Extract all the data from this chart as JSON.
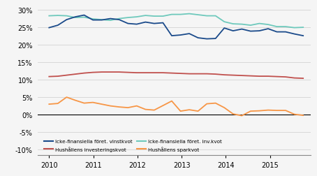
{
  "xlim": [
    2009.75,
    2015.92
  ],
  "ylim": [
    -0.115,
    0.315
  ],
  "yticks": [
    -0.1,
    -0.05,
    0.0,
    0.05,
    0.1,
    0.15,
    0.2,
    0.25,
    0.3
  ],
  "xtick_years": [
    2010,
    2011,
    2012,
    2013,
    2014,
    2015
  ],
  "colors": {
    "vinstkvot": "#1a4a8a",
    "inv_kvot_foret": "#6ec9bc",
    "hush_inv_kvot": "#c0504d",
    "hush_spark": "#f79646"
  },
  "legend": [
    {
      "label": "Icke-finansiella föret. vinstkvot",
      "color": "#1a4a8a"
    },
    {
      "label": "Hushållens investeringskvot",
      "color": "#c0504d"
    },
    {
      "label": "Icke-finansiella föret. inv.kvot",
      "color": "#6ec9bc"
    },
    {
      "label": "Hushållens sparkvot",
      "color": "#f79646"
    }
  ],
  "series": {
    "vinstkvot": [
      0.249,
      0.256,
      0.272,
      0.28,
      0.285,
      0.271,
      0.271,
      0.275,
      0.272,
      0.261,
      0.259,
      0.265,
      0.261,
      0.263,
      0.226,
      0.228,
      0.232,
      0.22,
      0.217,
      0.218,
      0.248,
      0.24,
      0.245,
      0.239,
      0.24,
      0.246,
      0.237,
      0.237,
      0.231,
      0.226
    ],
    "inv_kvot_foret": [
      0.283,
      0.284,
      0.283,
      0.278,
      0.279,
      0.274,
      0.272,
      0.27,
      0.275,
      0.278,
      0.28,
      0.284,
      0.282,
      0.282,
      0.287,
      0.287,
      0.289,
      0.286,
      0.283,
      0.283,
      0.266,
      0.26,
      0.259,
      0.256,
      0.261,
      0.258,
      0.252,
      0.252,
      0.249,
      0.25
    ],
    "hush_inv_kvot": [
      0.109,
      0.11,
      0.113,
      0.116,
      0.119,
      0.121,
      0.122,
      0.122,
      0.122,
      0.121,
      0.12,
      0.12,
      0.12,
      0.12,
      0.119,
      0.118,
      0.117,
      0.117,
      0.117,
      0.116,
      0.114,
      0.113,
      0.112,
      0.111,
      0.11,
      0.11,
      0.109,
      0.108,
      0.105,
      0.104
    ],
    "hush_spark": [
      0.03,
      0.032,
      0.05,
      0.041,
      0.033,
      0.035,
      0.03,
      0.025,
      0.022,
      0.02,
      0.025,
      0.015,
      0.013,
      0.026,
      0.039,
      0.01,
      0.014,
      0.01,
      0.031,
      0.033,
      0.02,
      0.002,
      -0.003,
      0.01,
      0.011,
      0.013,
      0.012,
      0.012,
      0.001,
      -0.002
    ]
  }
}
